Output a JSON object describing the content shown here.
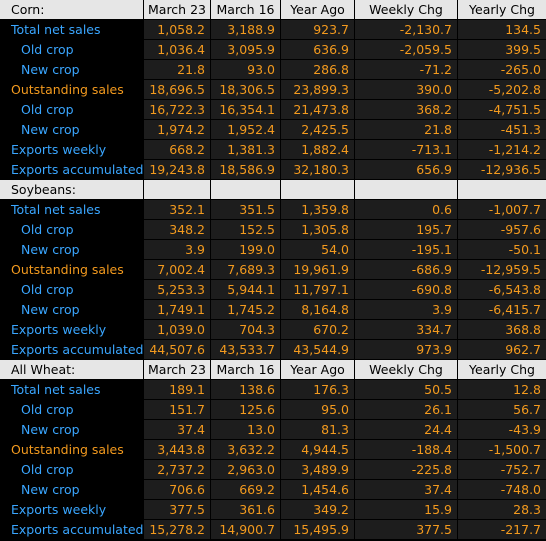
{
  "columns": [
    "March 23",
    "March 16",
    "Year Ago",
    "Weekly Chg",
    "Yearly Chg"
  ],
  "sections": [
    {
      "title": "Corn:",
      "show_columns": true,
      "rows": [
        {
          "label": "Total net sales",
          "level": 0,
          "color": "blue",
          "values": [
            "1,058.2",
            "3,188.9",
            "923.7",
            "-2,130.7",
            "134.5"
          ]
        },
        {
          "label": "Old crop",
          "level": 1,
          "color": "blue",
          "values": [
            "1,036.4",
            "3,095.9",
            "636.9",
            "-2,059.5",
            "399.5"
          ]
        },
        {
          "label": "New crop",
          "level": 1,
          "color": "blue",
          "values": [
            "21.8",
            "93.0",
            "286.8",
            "-71.2",
            "-265.0"
          ]
        },
        {
          "label": "Outstanding sales",
          "level": 0,
          "color": "orange",
          "values": [
            "18,696.5",
            "18,306.5",
            "23,899.3",
            "390.0",
            "-5,202.8"
          ]
        },
        {
          "label": "Old crop",
          "level": 1,
          "color": "blue",
          "values": [
            "16,722.3",
            "16,354.1",
            "21,473.8",
            "368.2",
            "-4,751.5"
          ]
        },
        {
          "label": "New crop",
          "level": 1,
          "color": "blue",
          "values": [
            "1,974.2",
            "1,952.4",
            "2,425.5",
            "21.8",
            "-451.3"
          ]
        },
        {
          "label": "Exports weekly",
          "level": 0,
          "color": "blue",
          "values": [
            "668.2",
            "1,381.3",
            "1,882.4",
            "-713.1",
            "-1,214.2"
          ]
        },
        {
          "label": "Exports accumulated",
          "level": 0,
          "color": "blue",
          "values": [
            "19,243.8",
            "18,586.9",
            "32,180.3",
            "656.9",
            "-12,936.5"
          ]
        }
      ]
    },
    {
      "title": "Soybeans:",
      "show_columns": false,
      "rows": [
        {
          "label": "Total net sales",
          "level": 0,
          "color": "blue",
          "values": [
            "352.1",
            "351.5",
            "1,359.8",
            "0.6",
            "-1,007.7"
          ]
        },
        {
          "label": "Old crop",
          "level": 1,
          "color": "blue",
          "values": [
            "348.2",
            "152.5",
            "1,305.8",
            "195.7",
            "-957.6"
          ]
        },
        {
          "label": "New crop",
          "level": 1,
          "color": "blue",
          "values": [
            "3.9",
            "199.0",
            "54.0",
            "-195.1",
            "-50.1"
          ]
        },
        {
          "label": "Outstanding sales",
          "level": 0,
          "color": "orange",
          "values": [
            "7,002.4",
            "7,689.3",
            "19,961.9",
            "-686.9",
            "-12,959.5"
          ]
        },
        {
          "label": "Old crop",
          "level": 1,
          "color": "blue",
          "values": [
            "5,253.3",
            "5,944.1",
            "11,797.1",
            "-690.8",
            "-6,543.8"
          ]
        },
        {
          "label": "New crop",
          "level": 1,
          "color": "blue",
          "values": [
            "1,749.1",
            "1,745.2",
            "8,164.8",
            "3.9",
            "-6,415.7"
          ]
        },
        {
          "label": "Exports weekly",
          "level": 0,
          "color": "blue",
          "values": [
            "1,039.0",
            "704.3",
            "670.2",
            "334.7",
            "368.8"
          ]
        },
        {
          "label": "Exports accumulated",
          "level": 0,
          "color": "blue",
          "values": [
            "44,507.6",
            "43,533.7",
            "43,544.9",
            "973.9",
            "962.7"
          ]
        }
      ]
    },
    {
      "title": "All Wheat:",
      "show_columns": true,
      "rows": [
        {
          "label": "Total net sales",
          "level": 0,
          "color": "blue",
          "values": [
            "189.1",
            "138.6",
            "176.3",
            "50.5",
            "12.8"
          ]
        },
        {
          "label": "Old crop",
          "level": 1,
          "color": "blue",
          "values": [
            "151.7",
            "125.6",
            "95.0",
            "26.1",
            "56.7"
          ]
        },
        {
          "label": "New crop",
          "level": 1,
          "color": "blue",
          "values": [
            "37.4",
            "13.0",
            "81.3",
            "24.4",
            "-43.9"
          ]
        },
        {
          "label": "Outstanding sales",
          "level": 0,
          "color": "orange",
          "values": [
            "3,443.8",
            "3,632.2",
            "4,944.5",
            "-188.4",
            "-1,500.7"
          ]
        },
        {
          "label": "Old crop",
          "level": 1,
          "color": "blue",
          "values": [
            "2,737.2",
            "2,963.0",
            "3,489.9",
            "-225.8",
            "-752.7"
          ]
        },
        {
          "label": "New crop",
          "level": 1,
          "color": "blue",
          "values": [
            "706.6",
            "669.2",
            "1,454.6",
            "37.4",
            "-748.0"
          ]
        },
        {
          "label": "Exports weekly",
          "level": 0,
          "color": "blue",
          "values": [
            "377.5",
            "361.6",
            "349.2",
            "15.9",
            "28.3"
          ]
        },
        {
          "label": "Exports accumulated",
          "level": 0,
          "color": "blue",
          "values": [
            "15,278.2",
            "14,900.7",
            "15,495.9",
            "377.5",
            "-217.7"
          ]
        }
      ]
    }
  ]
}
